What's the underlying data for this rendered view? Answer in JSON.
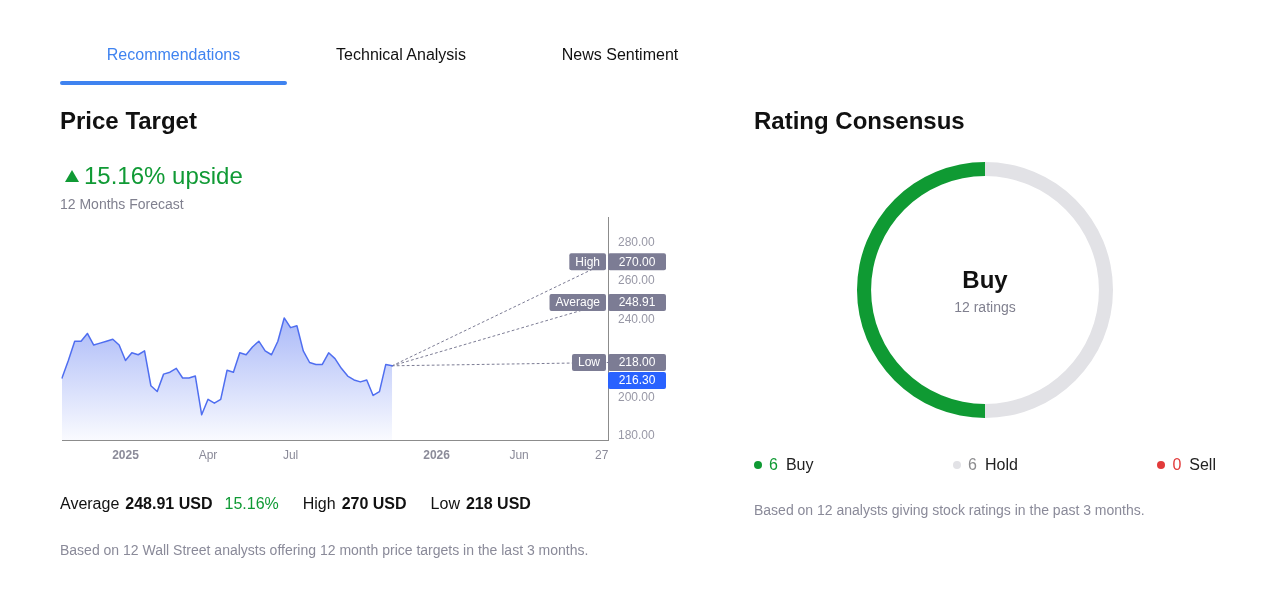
{
  "chart_data": [
    {
      "type": "area",
      "title": "Price Target",
      "subtitle": "15.16% upside",
      "categories": [
        null,
        null,
        null,
        null,
        null,
        null,
        null,
        null,
        null,
        null,
        "2025",
        null,
        null,
        null,
        null,
        null,
        null,
        null,
        null,
        null,
        null,
        null,
        null,
        "Apr",
        null,
        null,
        null,
        null,
        null,
        null,
        null,
        null,
        null,
        null,
        null,
        null,
        "Jul",
        null,
        null,
        null,
        null,
        null,
        null,
        null,
        null,
        null,
        null,
        null,
        null,
        null,
        null,
        null,
        null,
        null,
        null,
        null,
        null,
        null,
        null,
        "2026",
        null,
        null,
        null,
        null,
        null,
        null,
        null,
        null,
        null,
        null,
        null,
        null,
        "Jun",
        null,
        null,
        null,
        null,
        null,
        null,
        null,
        null,
        null,
        null,
        null,
        null,
        "27",
        null
      ],
      "series": [
        {
          "color": "#4f6ef0",
          "values": [
            210,
            219,
            229,
            229,
            233,
            227,
            228,
            229,
            230,
            227,
            219,
            223,
            222,
            224,
            206,
            203,
            212,
            213,
            215,
            210,
            210,
            211,
            191,
            199,
            197,
            199,
            214,
            213,
            223,
            222,
            226,
            229,
            224,
            222,
            229,
            241,
            236,
            237,
            224,
            218,
            217,
            217,
            223,
            220,
            215,
            211,
            209,
            208,
            209,
            201,
            203,
            217,
            216.3,
            null,
            null,
            null,
            null,
            null,
            null,
            null,
            null,
            null,
            null,
            null,
            null,
            null,
            null,
            null,
            null,
            null,
            null,
            null,
            null,
            null,
            null,
            null,
            null,
            null,
            null,
            null,
            null,
            null,
            null,
            null,
            null,
            null,
            null
          ]
        },
        {
          "name": "High",
          "type": "line",
          "color": "#7c7c94",
          "line_style": "dotted",
          "values": [
            null,
            null,
            null,
            null,
            null,
            null,
            null,
            null,
            null,
            null,
            null,
            null,
            null,
            null,
            null,
            null,
            null,
            null,
            null,
            null,
            null,
            null,
            null,
            null,
            null,
            null,
            null,
            null,
            null,
            null,
            null,
            null,
            null,
            null,
            null,
            null,
            null,
            null,
            null,
            null,
            null,
            null,
            null,
            null,
            null,
            null,
            null,
            null,
            null,
            null,
            null,
            null,
            216.3,
            null,
            null,
            null,
            null,
            null,
            null,
            null,
            null,
            null,
            null,
            null,
            null,
            null,
            null,
            null,
            null,
            null,
            null,
            null,
            null,
            null,
            null,
            null,
            null,
            null,
            null,
            null,
            null,
            null,
            null,
            null,
            null,
            null,
            270
          ],
          "value_labels": [
            null,
            null,
            null,
            null,
            null,
            null,
            null,
            null,
            null,
            null,
            null,
            null,
            null,
            null,
            null,
            null,
            null,
            null,
            null,
            null,
            null,
            null,
            null,
            null,
            null,
            null,
            null,
            null,
            null,
            null,
            null,
            null,
            null,
            null,
            null,
            null,
            null,
            null,
            null,
            null,
            null,
            null,
            null,
            null,
            null,
            null,
            null,
            null,
            null,
            null,
            null,
            null,
            null,
            null,
            null,
            null,
            null,
            null,
            null,
            null,
            null,
            null,
            null,
            null,
            null,
            null,
            null,
            null,
            null,
            null,
            null,
            null,
            null,
            null,
            null,
            null,
            null,
            null,
            null,
            null,
            null,
            null,
            null,
            null,
            null,
            null,
            "270.00"
          ]
        },
        {
          "name": "Average",
          "type": "line",
          "color": "#7c7c94",
          "line_style": "dotted",
          "values": [
            null,
            null,
            null,
            null,
            null,
            null,
            null,
            null,
            null,
            null,
            null,
            null,
            null,
            null,
            null,
            null,
            null,
            null,
            null,
            null,
            null,
            null,
            null,
            null,
            null,
            null,
            null,
            null,
            null,
            null,
            null,
            null,
            null,
            null,
            null,
            null,
            null,
            null,
            null,
            null,
            null,
            null,
            null,
            null,
            null,
            null,
            null,
            null,
            null,
            null,
            null,
            null,
            216.3,
            null,
            null,
            null,
            null,
            null,
            null,
            null,
            null,
            null,
            null,
            null,
            null,
            null,
            null,
            null,
            null,
            null,
            null,
            null,
            null,
            null,
            null,
            null,
            null,
            null,
            null,
            null,
            null,
            null,
            null,
            null,
            null,
            null,
            248.91
          ],
          "value_labels": [
            null,
            null,
            null,
            null,
            null,
            null,
            null,
            null,
            null,
            null,
            null,
            null,
            null,
            null,
            null,
            null,
            null,
            null,
            null,
            null,
            null,
            null,
            null,
            null,
            null,
            null,
            null,
            null,
            null,
            null,
            null,
            null,
            null,
            null,
            null,
            null,
            null,
            null,
            null,
            null,
            null,
            null,
            null,
            null,
            null,
            null,
            null,
            null,
            null,
            null,
            null,
            null,
            null,
            null,
            null,
            null,
            null,
            null,
            null,
            null,
            null,
            null,
            null,
            null,
            null,
            null,
            null,
            null,
            null,
            null,
            null,
            null,
            null,
            null,
            null,
            null,
            null,
            null,
            null,
            null,
            null,
            null,
            null,
            null,
            null,
            null,
            "248.91"
          ]
        },
        {
          "name": "Low",
          "type": "line",
          "color": "#7c7c94",
          "line_style": "dotted",
          "values": [
            null,
            null,
            null,
            null,
            null,
            null,
            null,
            null,
            null,
            null,
            null,
            null,
            null,
            null,
            null,
            null,
            null,
            null,
            null,
            null,
            null,
            null,
            null,
            null,
            null,
            null,
            null,
            null,
            null,
            null,
            null,
            null,
            null,
            null,
            null,
            null,
            null,
            null,
            null,
            null,
            null,
            null,
            null,
            null,
            null,
            null,
            null,
            null,
            null,
            null,
            null,
            null,
            216.3,
            null,
            null,
            null,
            null,
            null,
            null,
            null,
            null,
            null,
            null,
            null,
            null,
            null,
            null,
            null,
            null,
            null,
            null,
            null,
            null,
            null,
            null,
            null,
            null,
            null,
            null,
            null,
            null,
            null,
            null,
            null,
            null,
            null,
            218
          ],
          "value_labels": [
            null,
            null,
            null,
            null,
            null,
            null,
            null,
            null,
            null,
            null,
            null,
            null,
            null,
            null,
            null,
            null,
            null,
            null,
            null,
            null,
            null,
            null,
            null,
            null,
            null,
            null,
            null,
            null,
            null,
            null,
            null,
            null,
            null,
            null,
            null,
            null,
            null,
            null,
            null,
            null,
            null,
            null,
            null,
            null,
            null,
            null,
            null,
            null,
            null,
            null,
            null,
            null,
            null,
            null,
            null,
            null,
            null,
            null,
            null,
            null,
            null,
            null,
            null,
            null,
            null,
            null,
            null,
            null,
            null,
            null,
            null,
            null,
            null,
            null,
            null,
            null,
            null,
            null,
            null,
            null,
            null,
            null,
            null,
            null,
            null,
            null,
            "218.00"
          ]
        }
      ],
      "ylim": [
        178,
        293
      ],
      "yticks": [
        {
          "value": 180,
          "label": "180.00"
        },
        {
          "value": 200,
          "label": "200.00"
        },
        {
          "value": 240,
          "label": "240.00"
        },
        {
          "value": 260,
          "label": "260.00"
        },
        {
          "value": 280,
          "label": "280.00"
        }
      ],
      "grid": false,
      "legend": "right",
      "marker": "none",
      "annotations": [
        "Recommendations",
        "Technical Analysis",
        "News Sentiment",
        "12 Months Forecast",
        "Average",
        "248.91 USD",
        "15.16%",
        "High",
        "270 USD",
        "Low",
        "218 USD",
        "Based on 12 Wall Street analysts offering 12 month price targets in the last 3 months.",
        "216.30"
      ]
    },
    {
      "type": "donut",
      "title": "Rating Consensus",
      "categories": [
        "Buy",
        "Hold",
        "Sell"
      ],
      "values": [
        6,
        6,
        0
      ],
      "value_labels": [
        "6",
        "6",
        "0"
      ],
      "colors": [
        "#0f9a33",
        "#e2e2e6",
        "#e23a3a"
      ],
      "legend": "bottom",
      "annotations": [
        "Buy",
        "12 ratings",
        "Based on 12 analysts giving stock ratings in the past 3 months."
      ]
    }
  ]
}
